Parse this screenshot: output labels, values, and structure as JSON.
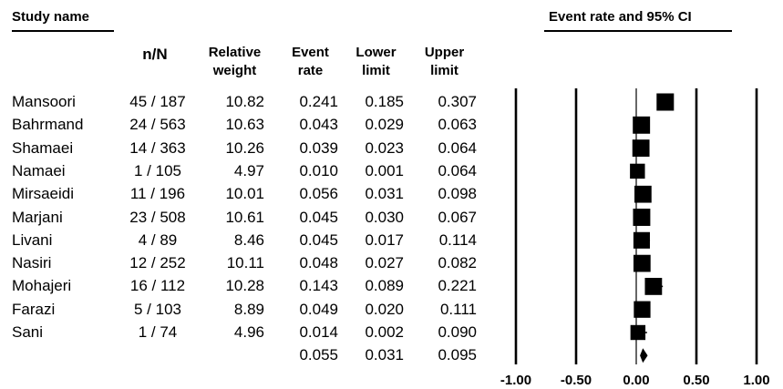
{
  "headers": {
    "study_name": "Study name",
    "event_rate_ci": "Event rate and 95% CI",
    "nN": "n/N",
    "rel_weight_1": "Relative",
    "rel_weight_2": "weight",
    "event_rate_1": "Event",
    "event_rate_2": "rate",
    "lower_1": "Lower",
    "lower_2": "limit",
    "upper_1": "Upper",
    "upper_2": "limit"
  },
  "rows": [
    {
      "name": "Mansoori",
      "nN": "45 / 187",
      "weight": "10.82",
      "rate": "0.241",
      "lower": "0.185",
      "upper": "0.307"
    },
    {
      "name": "Bahrmand",
      "nN": "24 / 563",
      "weight": "10.63",
      "rate": "0.043",
      "lower": "0.029",
      "upper": "0.063"
    },
    {
      "name": "Shamaei",
      "nN": "14 / 363",
      "weight": "10.26",
      "rate": "0.039",
      "lower": "0.023",
      "upper": "0.064"
    },
    {
      "name": "Namaei",
      "nN": "1 / 105",
      "weight": "4.97",
      "rate": "0.010",
      "lower": "0.001",
      "upper": "0.064"
    },
    {
      "name": "Mirsaeidi",
      "nN": "11 / 196",
      "weight": "10.01",
      "rate": "0.056",
      "lower": "0.031",
      "upper": "0.098"
    },
    {
      "name": "Marjani",
      "nN": "23 / 508",
      "weight": "10.61",
      "rate": "0.045",
      "lower": "0.030",
      "upper": "0.067"
    },
    {
      "name": "Livani",
      "nN": "4 / 89",
      "weight": "8.46",
      "rate": "0.045",
      "lower": "0.017",
      "upper": "0.114"
    },
    {
      "name": "Nasiri",
      "nN": "12 / 252",
      "weight": "10.11",
      "rate": "0.048",
      "lower": "0.027",
      "upper": "0.082"
    },
    {
      "name": "Mohajeri",
      "nN": "16 / 112",
      "weight": "10.28",
      "rate": "0.143",
      "lower": "0.089",
      "upper": "0.221"
    },
    {
      "name": "Farazi",
      "nN": "5 / 103",
      "weight": "8.89",
      "rate": "0.049",
      "lower": "0.020",
      "upper": "0.111"
    },
    {
      "name": "Sani",
      "nN": "1 / 74",
      "weight": "4.96",
      "rate": "0.014",
      "lower": "0.002",
      "upper": "0.090"
    }
  ],
  "pooled": {
    "rate": "0.055",
    "lower": "0.031",
    "upper": "0.095"
  },
  "chart_data": {
    "type": "forest",
    "title": "Event rate and 95% CI",
    "xlim": [
      -1.0,
      1.0
    ],
    "x_ticks": [
      -1.0,
      -0.5,
      0.0,
      0.5,
      1.0
    ],
    "x_tick_labels": [
      "-1.00",
      "-0.50",
      "0.00",
      "0.50",
      "1.00"
    ],
    "points": [
      {
        "study": "Mansoori",
        "value": 0.241,
        "lower": 0.185,
        "upper": 0.307,
        "weight": 10.82
      },
      {
        "study": "Bahrmand",
        "value": 0.043,
        "lower": 0.029,
        "upper": 0.063,
        "weight": 10.63
      },
      {
        "study": "Shamaei",
        "value": 0.039,
        "lower": 0.023,
        "upper": 0.064,
        "weight": 10.26
      },
      {
        "study": "Namaei",
        "value": 0.01,
        "lower": 0.001,
        "upper": 0.064,
        "weight": 4.97
      },
      {
        "study": "Mirsaeidi",
        "value": 0.056,
        "lower": 0.031,
        "upper": 0.098,
        "weight": 10.01
      },
      {
        "study": "Marjani",
        "value": 0.045,
        "lower": 0.03,
        "upper": 0.067,
        "weight": 10.61
      },
      {
        "study": "Livani",
        "value": 0.045,
        "lower": 0.017,
        "upper": 0.114,
        "weight": 8.46
      },
      {
        "study": "Nasiri",
        "value": 0.048,
        "lower": 0.027,
        "upper": 0.082,
        "weight": 10.11
      },
      {
        "study": "Mohajeri",
        "value": 0.143,
        "lower": 0.089,
        "upper": 0.221,
        "weight": 10.28
      },
      {
        "study": "Farazi",
        "value": 0.049,
        "lower": 0.02,
        "upper": 0.111,
        "weight": 8.89
      },
      {
        "study": "Sani",
        "value": 0.014,
        "lower": 0.002,
        "upper": 0.09,
        "weight": 4.96
      }
    ],
    "pooled": {
      "value": 0.055,
      "lower": 0.031,
      "upper": 0.095
    }
  }
}
